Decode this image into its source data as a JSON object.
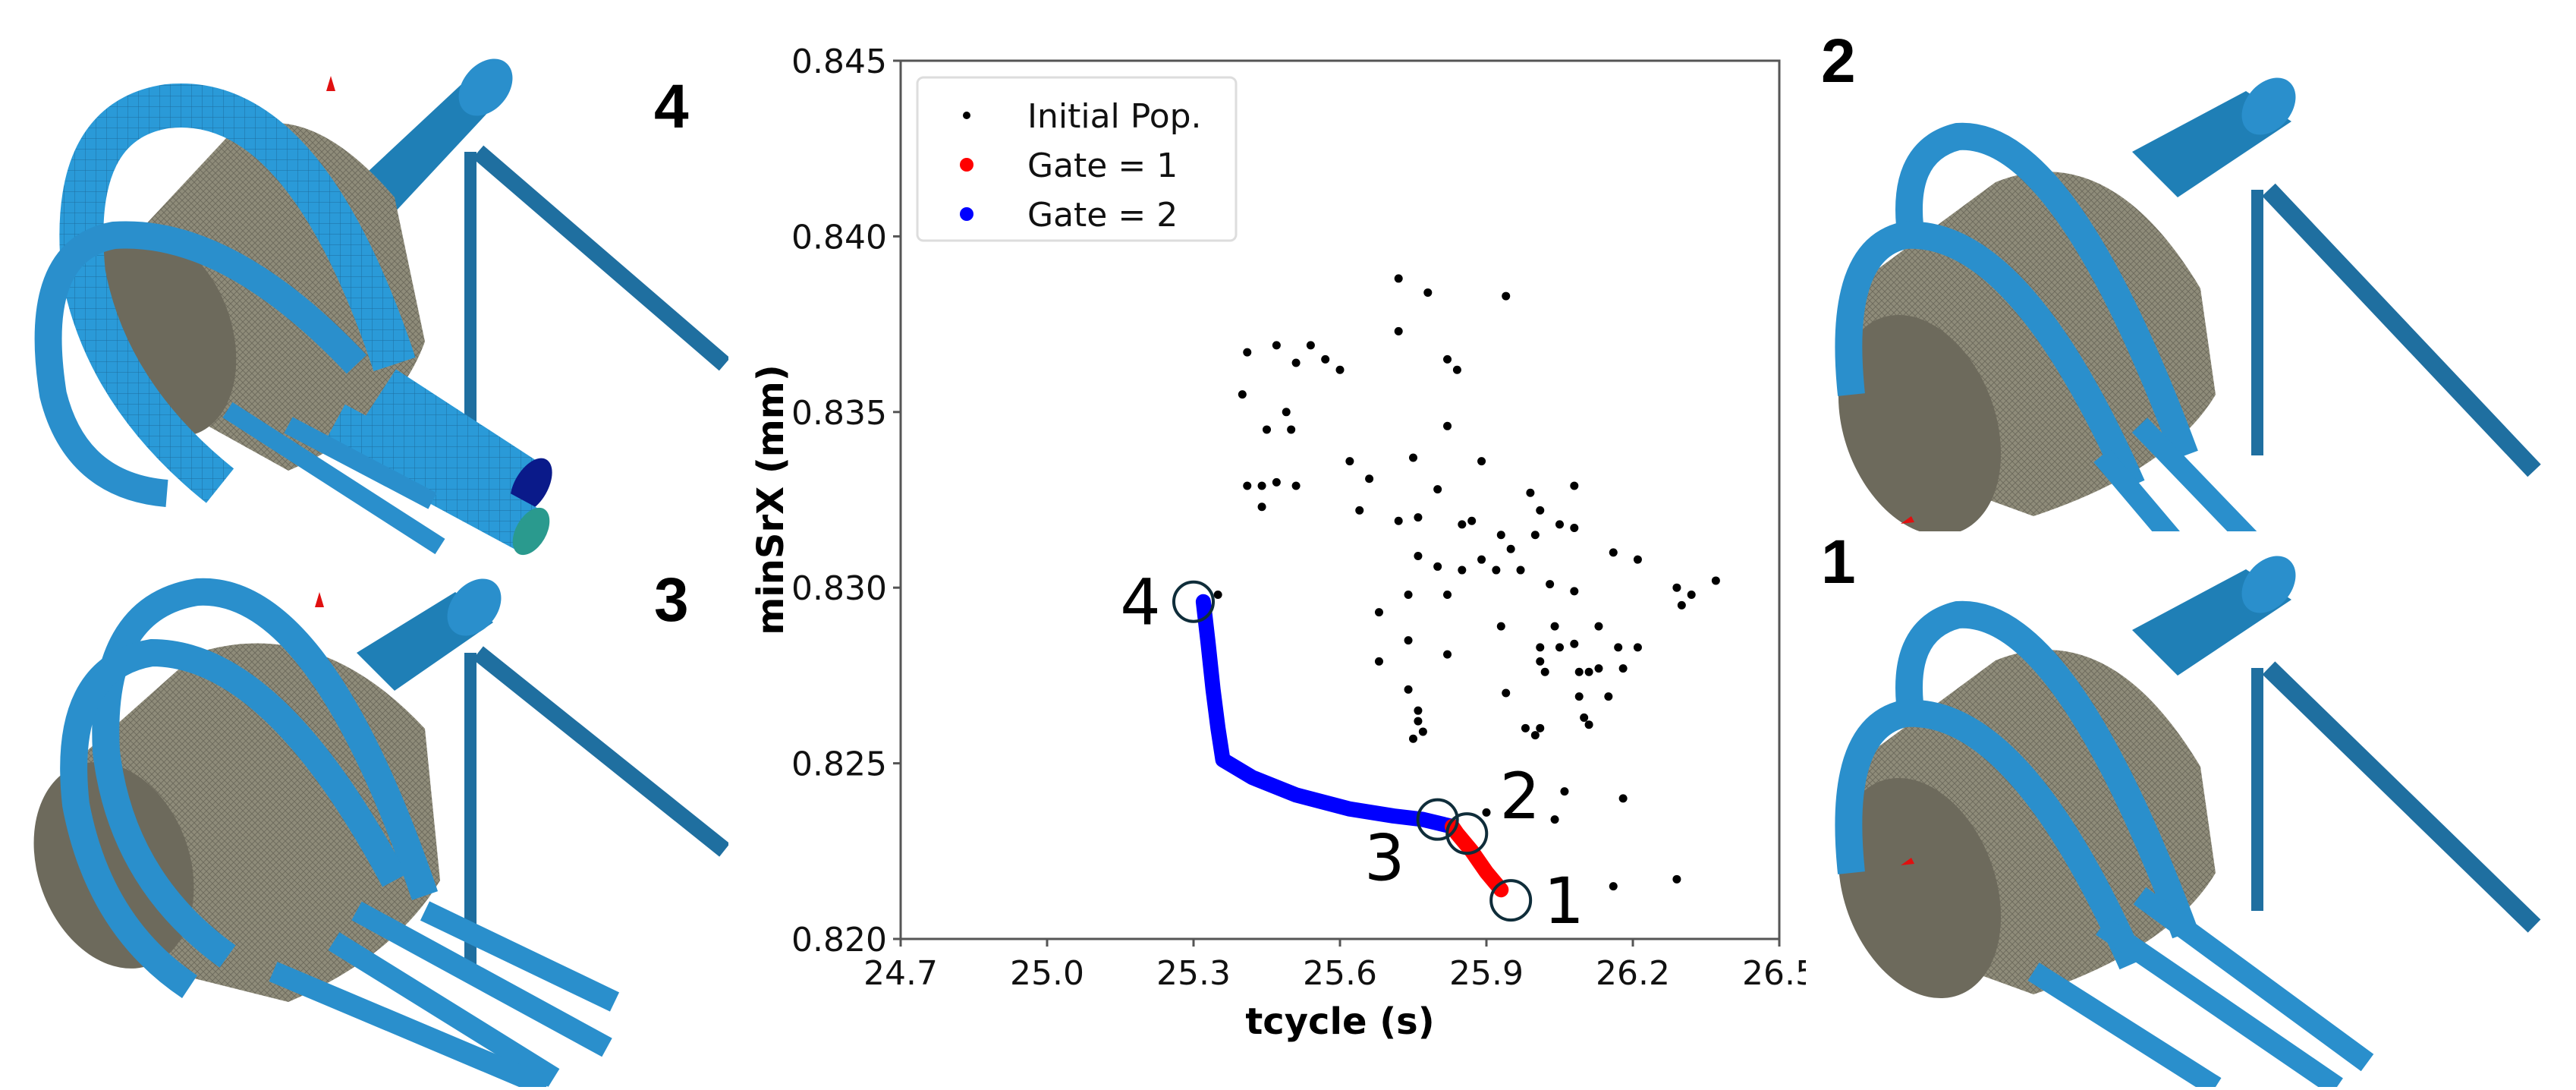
{
  "panels": {
    "left_top": {
      "label": "4",
      "description": "mold cooling channel mesh design 4"
    },
    "left_bottom": {
      "label": "3",
      "description": "mold cooling channel mesh design 3"
    },
    "right_top": {
      "label": "2",
      "description": "mold cooling channel mesh design 2"
    },
    "right_bottom": {
      "label": "1",
      "description": "mold cooling channel mesh design 1"
    }
  },
  "colors": {
    "pipe": "#2a8fcc",
    "pipe_light": "#37a9e3",
    "pipe_dark": "#14628f",
    "pipe_end": "#0a1a8a",
    "pipe_end_teal": "#2a9a8e",
    "part": "#8f8c7a",
    "part_dark": "#5f5d51",
    "initial_pop": "#000000",
    "gate1": "#ff0000",
    "gate2": "#0000ff",
    "circle": "#0f2d3a"
  },
  "chart_data": {
    "type": "scatter",
    "title": "",
    "xlabel": "tcycle (s)",
    "ylabel": "minSrX (mm)",
    "xlim": [
      24.7,
      26.5
    ],
    "ylim": [
      0.82,
      0.845
    ],
    "xticks": [
      "24.7",
      "25.0",
      "25.3",
      "25.6",
      "25.9",
      "26.2",
      "26.5"
    ],
    "yticks": [
      "0.820",
      "0.825",
      "0.830",
      "0.835",
      "0.840",
      "0.845"
    ],
    "grid": false,
    "legend_position": "upper left",
    "legend": [
      "Initial Pop.",
      "Gate = 1",
      "Gate = 2"
    ],
    "series": [
      {
        "name": "Initial Pop.",
        "color": "#000000",
        "points": [
          [
            25.72,
            0.8388
          ],
          [
            25.78,
            0.8384
          ],
          [
            25.94,
            0.8383
          ],
          [
            25.72,
            0.8373
          ],
          [
            25.41,
            0.8367
          ],
          [
            25.47,
            0.8369
          ],
          [
            25.54,
            0.8369
          ],
          [
            25.57,
            0.8365
          ],
          [
            25.51,
            0.8364
          ],
          [
            25.6,
            0.8362
          ],
          [
            25.82,
            0.8365
          ],
          [
            25.84,
            0.8362
          ],
          [
            25.4,
            0.8355
          ],
          [
            25.49,
            0.835
          ],
          [
            25.45,
            0.8345
          ],
          [
            25.5,
            0.8345
          ],
          [
            25.82,
            0.8346
          ],
          [
            25.62,
            0.8336
          ],
          [
            25.75,
            0.8337
          ],
          [
            25.8,
            0.8328
          ],
          [
            25.89,
            0.8336
          ],
          [
            25.66,
            0.8331
          ],
          [
            25.41,
            0.8329
          ],
          [
            25.44,
            0.8329
          ],
          [
            25.47,
            0.833
          ],
          [
            25.51,
            0.8329
          ],
          [
            25.44,
            0.8323
          ],
          [
            25.64,
            0.8322
          ],
          [
            25.72,
            0.8319
          ],
          [
            25.76,
            0.832
          ],
          [
            25.85,
            0.8318
          ],
          [
            25.87,
            0.8319
          ],
          [
            25.99,
            0.8327
          ],
          [
            26.01,
            0.8322
          ],
          [
            26.08,
            0.8329
          ],
          [
            26.0,
            0.8315
          ],
          [
            26.05,
            0.8318
          ],
          [
            25.93,
            0.8315
          ],
          [
            25.95,
            0.8311
          ],
          [
            25.89,
            0.8308
          ],
          [
            25.76,
            0.8309
          ],
          [
            25.8,
            0.8306
          ],
          [
            25.85,
            0.8305
          ],
          [
            25.92,
            0.8305
          ],
          [
            25.97,
            0.8305
          ],
          [
            26.08,
            0.8317
          ],
          [
            26.16,
            0.831
          ],
          [
            26.21,
            0.8308
          ],
          [
            26.29,
            0.83
          ],
          [
            26.32,
            0.8298
          ],
          [
            26.37,
            0.8302
          ],
          [
            26.3,
            0.8295
          ],
          [
            26.03,
            0.8301
          ],
          [
            26.08,
            0.8299
          ],
          [
            25.35,
            0.8298
          ],
          [
            25.74,
            0.8298
          ],
          [
            25.82,
            0.8298
          ],
          [
            25.93,
            0.8289
          ],
          [
            26.04,
            0.8289
          ],
          [
            26.13,
            0.8289
          ],
          [
            25.68,
            0.8293
          ],
          [
            25.74,
            0.8285
          ],
          [
            25.82,
            0.8281
          ],
          [
            26.01,
            0.8283
          ],
          [
            26.05,
            0.8283
          ],
          [
            26.01,
            0.8279
          ],
          [
            26.08,
            0.8284
          ],
          [
            26.17,
            0.8283
          ],
          [
            26.21,
            0.8283
          ],
          [
            25.68,
            0.8279
          ],
          [
            25.74,
            0.8271
          ],
          [
            26.02,
            0.8276
          ],
          [
            26.09,
            0.8276
          ],
          [
            26.11,
            0.8276
          ],
          [
            26.13,
            0.8277
          ],
          [
            26.18,
            0.8277
          ],
          [
            25.94,
            0.827
          ],
          [
            26.09,
            0.8269
          ],
          [
            26.15,
            0.8269
          ],
          [
            26.1,
            0.8263
          ],
          [
            26.11,
            0.8261
          ],
          [
            25.98,
            0.826
          ],
          [
            26.01,
            0.826
          ],
          [
            26.0,
            0.8258
          ],
          [
            25.76,
            0.8265
          ],
          [
            25.76,
            0.8262
          ],
          [
            25.75,
            0.8257
          ],
          [
            25.77,
            0.8259
          ],
          [
            26.06,
            0.8242
          ],
          [
            26.18,
            0.824
          ],
          [
            26.04,
            0.8234
          ],
          [
            25.9,
            0.8236
          ],
          [
            26.16,
            0.8215
          ],
          [
            26.29,
            0.8217
          ]
        ]
      },
      {
        "name": "Gate = 1",
        "color": "#ff0000",
        "points": [
          [
            25.93,
            0.8214
          ],
          [
            25.9,
            0.8219
          ],
          [
            25.87,
            0.8225
          ],
          [
            25.84,
            0.823
          ],
          [
            25.83,
            0.8232
          ]
        ]
      },
      {
        "name": "Gate = 2",
        "color": "#0000ff",
        "points": [
          [
            25.83,
            0.8232
          ],
          [
            25.77,
            0.8234
          ],
          [
            25.71,
            0.8235
          ],
          [
            25.62,
            0.8237
          ],
          [
            25.51,
            0.8241
          ],
          [
            25.42,
            0.8246
          ],
          [
            25.36,
            0.8251
          ],
          [
            25.35,
            0.826
          ],
          [
            25.34,
            0.8271
          ],
          [
            25.33,
            0.8284
          ],
          [
            25.32,
            0.8296
          ]
        ]
      }
    ],
    "annotations": [
      {
        "label": "1",
        "x": 25.95,
        "y": 0.8211,
        "text_dx": 1,
        "text_dy": 0
      },
      {
        "label": "2",
        "x": 25.86,
        "y": 0.823,
        "text_dx": 1,
        "text_dy": -1
      },
      {
        "label": "3",
        "x": 25.8,
        "y": 0.8234,
        "text_dx": -1,
        "text_dy": 1
      },
      {
        "label": "4",
        "x": 25.3,
        "y": 0.8296,
        "text_dx": -1,
        "text_dy": 0
      }
    ]
  }
}
